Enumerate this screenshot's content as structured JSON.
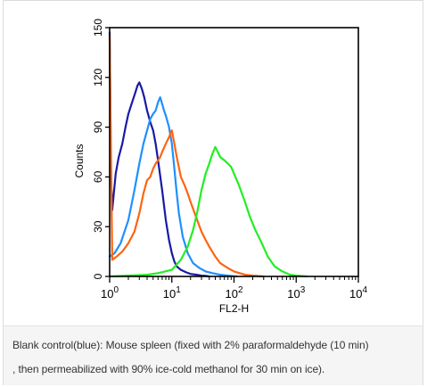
{
  "chart_data": {
    "type": "line",
    "xlabel": "FL2-H",
    "ylabel": "Counts",
    "xscale": "log",
    "xlim": [
      1,
      10000
    ],
    "ylim": [
      0,
      150
    ],
    "grid": false,
    "legend": "none",
    "x_ticks": [
      {
        "value": 1,
        "base": "10",
        "exp": "0"
      },
      {
        "value": 10,
        "base": "10",
        "exp": "1"
      },
      {
        "value": 100,
        "base": "10",
        "exp": "2"
      },
      {
        "value": 1000,
        "base": "10",
        "exp": "3"
      },
      {
        "value": 10000,
        "base": "10",
        "exp": "4"
      }
    ],
    "y_ticks": [
      {
        "value": 0,
        "label": "0"
      },
      {
        "value": 30,
        "label": "30"
      },
      {
        "value": 60,
        "label": "60"
      },
      {
        "value": 90,
        "label": "90"
      },
      {
        "value": 120,
        "label": "120"
      },
      {
        "value": 150,
        "label": "150"
      }
    ],
    "series": [
      {
        "color": "#1a1aa6",
        "x": [
          1,
          1.05,
          1.1,
          1.25,
          1.4,
          1.6,
          1.8,
          2.0,
          2.3,
          2.6,
          2.8,
          3.0,
          3.3,
          3.6,
          4.0,
          4.5,
          5.0,
          5.5,
          6.0,
          7.0,
          8.0,
          9.0,
          10,
          11,
          12,
          14,
          17,
          20,
          25,
          30,
          35,
          40
        ],
        "y": [
          147,
          60,
          40,
          62,
          72,
          80,
          90,
          98,
          105,
          111,
          115,
          117,
          113,
          108,
          100,
          93,
          88,
          80,
          70,
          52,
          34,
          22,
          14,
          9,
          6,
          4,
          2.5,
          1.5,
          1,
          0.5,
          0.3,
          0
        ]
      },
      {
        "color": "#1e90ff",
        "x": [
          1,
          1.2,
          1.5,
          2.0,
          2.5,
          3.0,
          3.5,
          4.0,
          4.5,
          5.0,
          5.5,
          6.0,
          6.5,
          7.0,
          7.5,
          8.0,
          9.0,
          10,
          11,
          12,
          13,
          15,
          18,
          22,
          28,
          35,
          45,
          60,
          80,
          110
        ],
        "y": [
          12,
          14,
          20,
          34,
          52,
          68,
          80,
          88,
          95,
          98,
          100,
          105,
          108,
          104,
          100,
          97,
          90,
          80,
          65,
          50,
          38,
          24,
          14,
          8,
          5,
          3,
          2,
          1,
          0.5,
          0
        ]
      },
      {
        "color": "#ff6410",
        "x": [
          1,
          1.1,
          1.3,
          1.6,
          2.0,
          2.5,
          3.0,
          3.5,
          4.0,
          4.5,
          5.0,
          5.5,
          6.0,
          6.5,
          7.0,
          8.0,
          9.0,
          10,
          11,
          12,
          14,
          16,
          18,
          20,
          25,
          30,
          35,
          40,
          50,
          60,
          80,
          100,
          150,
          200,
          300
        ],
        "y": [
          145,
          10,
          12,
          15,
          20,
          27,
          38,
          50,
          58,
          60,
          65,
          68,
          70,
          72,
          75,
          80,
          84,
          88,
          80,
          72,
          60,
          55,
          50,
          45,
          35,
          27,
          22,
          18,
          12,
          8,
          5,
          3,
          1,
          0.5,
          0
        ]
      },
      {
        "color": "#22ee22",
        "x": [
          1,
          2,
          4,
          6,
          10,
          14,
          18,
          22,
          26,
          30,
          35,
          40,
          45,
          50,
          55,
          60,
          70,
          80,
          90,
          100,
          120,
          150,
          180,
          220,
          280,
          350,
          450,
          600,
          800,
          1000,
          1500
        ],
        "y": [
          0,
          0.5,
          1,
          2,
          4,
          10,
          18,
          28,
          40,
          52,
          62,
          68,
          74,
          78,
          75,
          72,
          70,
          68,
          66,
          62,
          55,
          45,
          36,
          28,
          20,
          12,
          6,
          3,
          1,
          0.5,
          0
        ]
      }
    ]
  },
  "caption": {
    "line1": "Blank control(blue): Mouse spleen (fixed with 2% paraformaldehyde (10 min)",
    "line2": ", then permeabilized with 90% ice-cold methanol for 30 min on ice)."
  }
}
